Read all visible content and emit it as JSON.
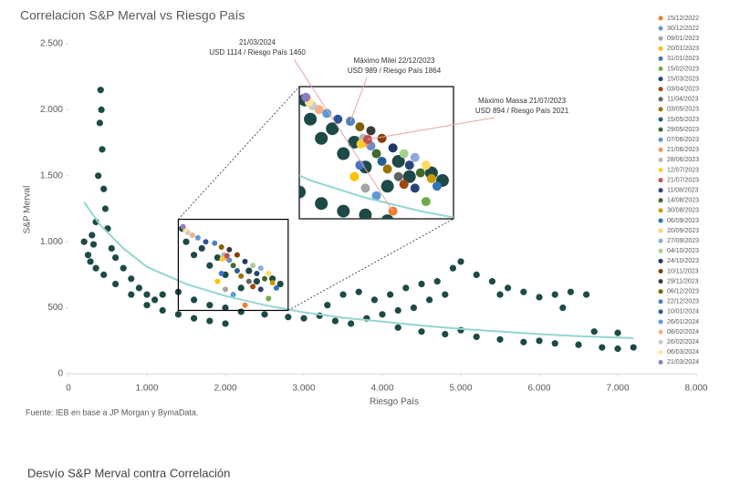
{
  "chart_data": {
    "type": "scatter",
    "title": "Correlacion S&P Merval vs Riesgo País",
    "xlabel": "Riesgo País",
    "ylabel": "S&P Merval",
    "source": "Fuente: IEB en base a JP Morgan y BymaData.",
    "xlim": [
      0,
      8000
    ],
    "ylim": [
      0,
      2500
    ],
    "xticks": [
      0,
      {
        "value": 1000,
        "label": "1.000"
      },
      {
        "value": 2000,
        "label": "2.000"
      },
      {
        "value": 3000,
        "label": "3.000"
      },
      {
        "value": 4000,
        "label": "4.000"
      },
      {
        "value": 5000,
        "label": "5.000"
      },
      {
        "value": 6000,
        "label": "6.000"
      },
      {
        "value": 7000,
        "label": "7.000"
      },
      {
        "value": 8000,
        "label": "8.000"
      }
    ],
    "yticks": [
      0,
      500,
      {
        "value": 1000,
        "label": "1.000"
      },
      {
        "value": 1500,
        "label": "1.500"
      },
      {
        "value": 2000,
        "label": "2.000"
      },
      {
        "value": 2500,
        "label": "2.500"
      }
    ],
    "grid": false,
    "legend": "right",
    "trend": {
      "color": "#93d6d2",
      "x": [
        200,
        400,
        700,
        1000,
        1500,
        2000,
        2500,
        3000,
        3500,
        4000,
        4500,
        5000,
        5500,
        6000,
        6500,
        7200
      ],
      "values": [
        1300,
        1130,
        950,
        810,
        680,
        590,
        520,
        465,
        425,
        395,
        365,
        340,
        320,
        300,
        285,
        270
      ]
    },
    "annotations": [
      {
        "label": "21/03/2024",
        "text": "USD 1114 / Riesgo País 1460"
      },
      {
        "label": "Máximo Milei 22/12/2023",
        "text": "USD 989 / Riesgo País 1864"
      },
      {
        "label": "Máximo Massa 21/07/2023",
        "text": "USD 894 / Riesgo País 2021"
      }
    ],
    "series": [
      {
        "color": "#1d4a47",
        "x": [
          300,
          320,
          350,
          380,
          400,
          410,
          420,
          430,
          450,
          470,
          500,
          550,
          600,
          700,
          800,
          900,
          1000,
          1100,
          200,
          250,
          280,
          350,
          450,
          600,
          800,
          1000,
          1200,
          1400,
          1600,
          1800,
          2000,
          1200,
          1400,
          1600,
          1800,
          2000,
          2200,
          2500,
          2800,
          3000,
          3200,
          3400,
          3600,
          3800,
          4000,
          4200,
          4400,
          4600,
          4800,
          4700,
          4900,
          5000,
          5200,
          5400,
          5600,
          5800,
          6000,
          6200,
          6400,
          6600,
          4200,
          4500,
          4800,
          5000,
          5200,
          5500,
          5800,
          6000,
          6200,
          6500,
          6800,
          7000,
          7200,
          3500,
          3700,
          3900,
          3300,
          4100,
          4300,
          4500,
          5500,
          6300,
          6700,
          7000,
          2200,
          2400,
          2000,
          1800,
          1600,
          1500,
          1700,
          1900,
          2300,
          2600,
          2700,
          1450
        ],
        "values": [
          1050,
          980,
          1150,
          1500,
          1900,
          2150,
          2000,
          1700,
          1400,
          1250,
          1100,
          950,
          880,
          800,
          720,
          650,
          600,
          560,
          1000,
          900,
          850,
          800,
          750,
          680,
          600,
          520,
          480,
          450,
          420,
          400,
          380,
          600,
          620,
          560,
          520,
          500,
          470,
          450,
          430,
          420,
          440,
          400,
          380,
          420,
          450,
          480,
          500,
          560,
          600,
          700,
          800,
          850,
          750,
          700,
          650,
          620,
          580,
          600,
          620,
          600,
          350,
          320,
          300,
          330,
          280,
          260,
          240,
          250,
          230,
          220,
          200,
          190,
          200,
          600,
          620,
          560,
          520,
          600,
          650,
          680,
          600,
          500,
          320,
          310,
          650,
          700,
          750,
          820,
          900,
          1000,
          950,
          880,
          780,
          720,
          680,
          1100
        ]
      },
      {
        "name": "15/12/2022",
        "color": "#ed7d31",
        "x": [
          2250
        ],
        "values": [
          520
        ]
      },
      {
        "name": "30/12/2022",
        "color": "#5b9bd5",
        "x": [
          2100
        ],
        "values": [
          600
        ]
      },
      {
        "name": "09/01/2023",
        "color": "#a5a5a5",
        "x": [
          2000
        ],
        "values": [
          640
        ]
      },
      {
        "name": "20/01/2023",
        "color": "#ffc000",
        "x": [
          1900
        ],
        "values": [
          700
        ]
      },
      {
        "name": "31/01/2023",
        "color": "#4472c4",
        "x": [
          1950
        ],
        "values": [
          760
        ]
      },
      {
        "name": "15/02/2023",
        "color": "#70ad47",
        "x": [
          2550
        ],
        "values": [
          570
        ]
      },
      {
        "name": "15/03/2023",
        "color": "#264478",
        "x": [
          2450
        ],
        "values": [
          640
        ]
      },
      {
        "name": "03/04/2023",
        "color": "#9e480e",
        "x": [
          2350
        ],
        "values": [
          660
        ]
      },
      {
        "name": "11/04/2023",
        "color": "#636363",
        "x": [
          2300
        ],
        "values": [
          700
        ]
      },
      {
        "name": "03/05/2023",
        "color": "#997300",
        "x": [
          2200
        ],
        "values": [
          740
        ]
      },
      {
        "name": "15/05/2023",
        "color": "#255e91",
        "x": [
          2150
        ],
        "values": [
          780
        ]
      },
      {
        "name": "29/05/2023",
        "color": "#43682b",
        "x": [
          2100
        ],
        "values": [
          820
        ]
      },
      {
        "name": "07/06/2023",
        "color": "#698ed0",
        "x": [
          2050
        ],
        "values": [
          860
        ]
      },
      {
        "name": "21/06/2023",
        "color": "#f1975a",
        "x": [
          2000
        ],
        "values": [
          880
        ]
      },
      {
        "name": "28/06/2023",
        "color": "#b7b7b7",
        "x": [
          1980
        ],
        "values": [
          900
        ]
      },
      {
        "name": "12/07/2023",
        "color": "#ffcd33",
        "x": [
          1960
        ],
        "values": [
          870
        ]
      },
      {
        "name": "21/07/2023",
        "color": "#c0504d",
        "x": [
          2021
        ],
        "values": [
          894
        ]
      },
      {
        "name": "11/08/2023",
        "color": "#264478",
        "x": [
          2400
        ],
        "values": [
          760
        ]
      },
      {
        "name": "14/08/2023",
        "color": "#43682b",
        "x": [
          2500
        ],
        "values": [
          720
        ]
      },
      {
        "name": "30/08/2023",
        "color": "#cc9900",
        "x": [
          2600
        ],
        "values": [
          690
        ]
      },
      {
        "name": "06/09/2023",
        "color": "#2e75b6",
        "x": [
          2650
        ],
        "values": [
          650
        ]
      },
      {
        "name": "20/09/2023",
        "color": "#ffd966",
        "x": [
          2550
        ],
        "values": [
          760
        ]
      },
      {
        "name": "27/09/2023",
        "color": "#8faadc",
        "x": [
          2450
        ],
        "values": [
          800
        ]
      },
      {
        "name": "04/10/2023",
        "color": "#a9d18e",
        "x": [
          2350
        ],
        "values": [
          820
        ]
      },
      {
        "name": "24/10/2023",
        "color": "#1f3864",
        "x": [
          2250
        ],
        "values": [
          850
        ]
      },
      {
        "name": "10/11/2023",
        "color": "#843c0c",
        "x": [
          2150
        ],
        "values": [
          900
        ]
      },
      {
        "name": "29/11/2023",
        "color": "#3a3a3a",
        "x": [
          2050
        ],
        "values": [
          940
        ]
      },
      {
        "name": "06/12/2023",
        "color": "#7f6000",
        "x": [
          1950
        ],
        "values": [
          960
        ]
      },
      {
        "name": "22/12/2023",
        "color": "#4f81bd",
        "x": [
          1864
        ],
        "values": [
          989
        ]
      },
      {
        "name": "10/01/2024",
        "color": "#2f5597",
        "x": [
          1750
        ],
        "values": [
          1000
        ]
      },
      {
        "name": "26/01/2024",
        "color": "#5b9bd5",
        "x": [
          1650
        ],
        "values": [
          1030
        ]
      },
      {
        "name": "08/02/2024",
        "color": "#f4b183",
        "x": [
          1580
        ],
        "values": [
          1050
        ]
      },
      {
        "name": "26/02/2024",
        "color": "#c9c9c9",
        "x": [
          1520
        ],
        "values": [
          1070
        ]
      },
      {
        "name": "06/03/2024",
        "color": "#ffe699",
        "x": [
          1490
        ],
        "values": [
          1090
        ]
      },
      {
        "name": "21/03/2024",
        "color": "#8e7cc3",
        "x": [
          1460
        ],
        "values": [
          1114
        ]
      }
    ]
  },
  "section_title": "Desvío S&P Merval contra Correlación"
}
